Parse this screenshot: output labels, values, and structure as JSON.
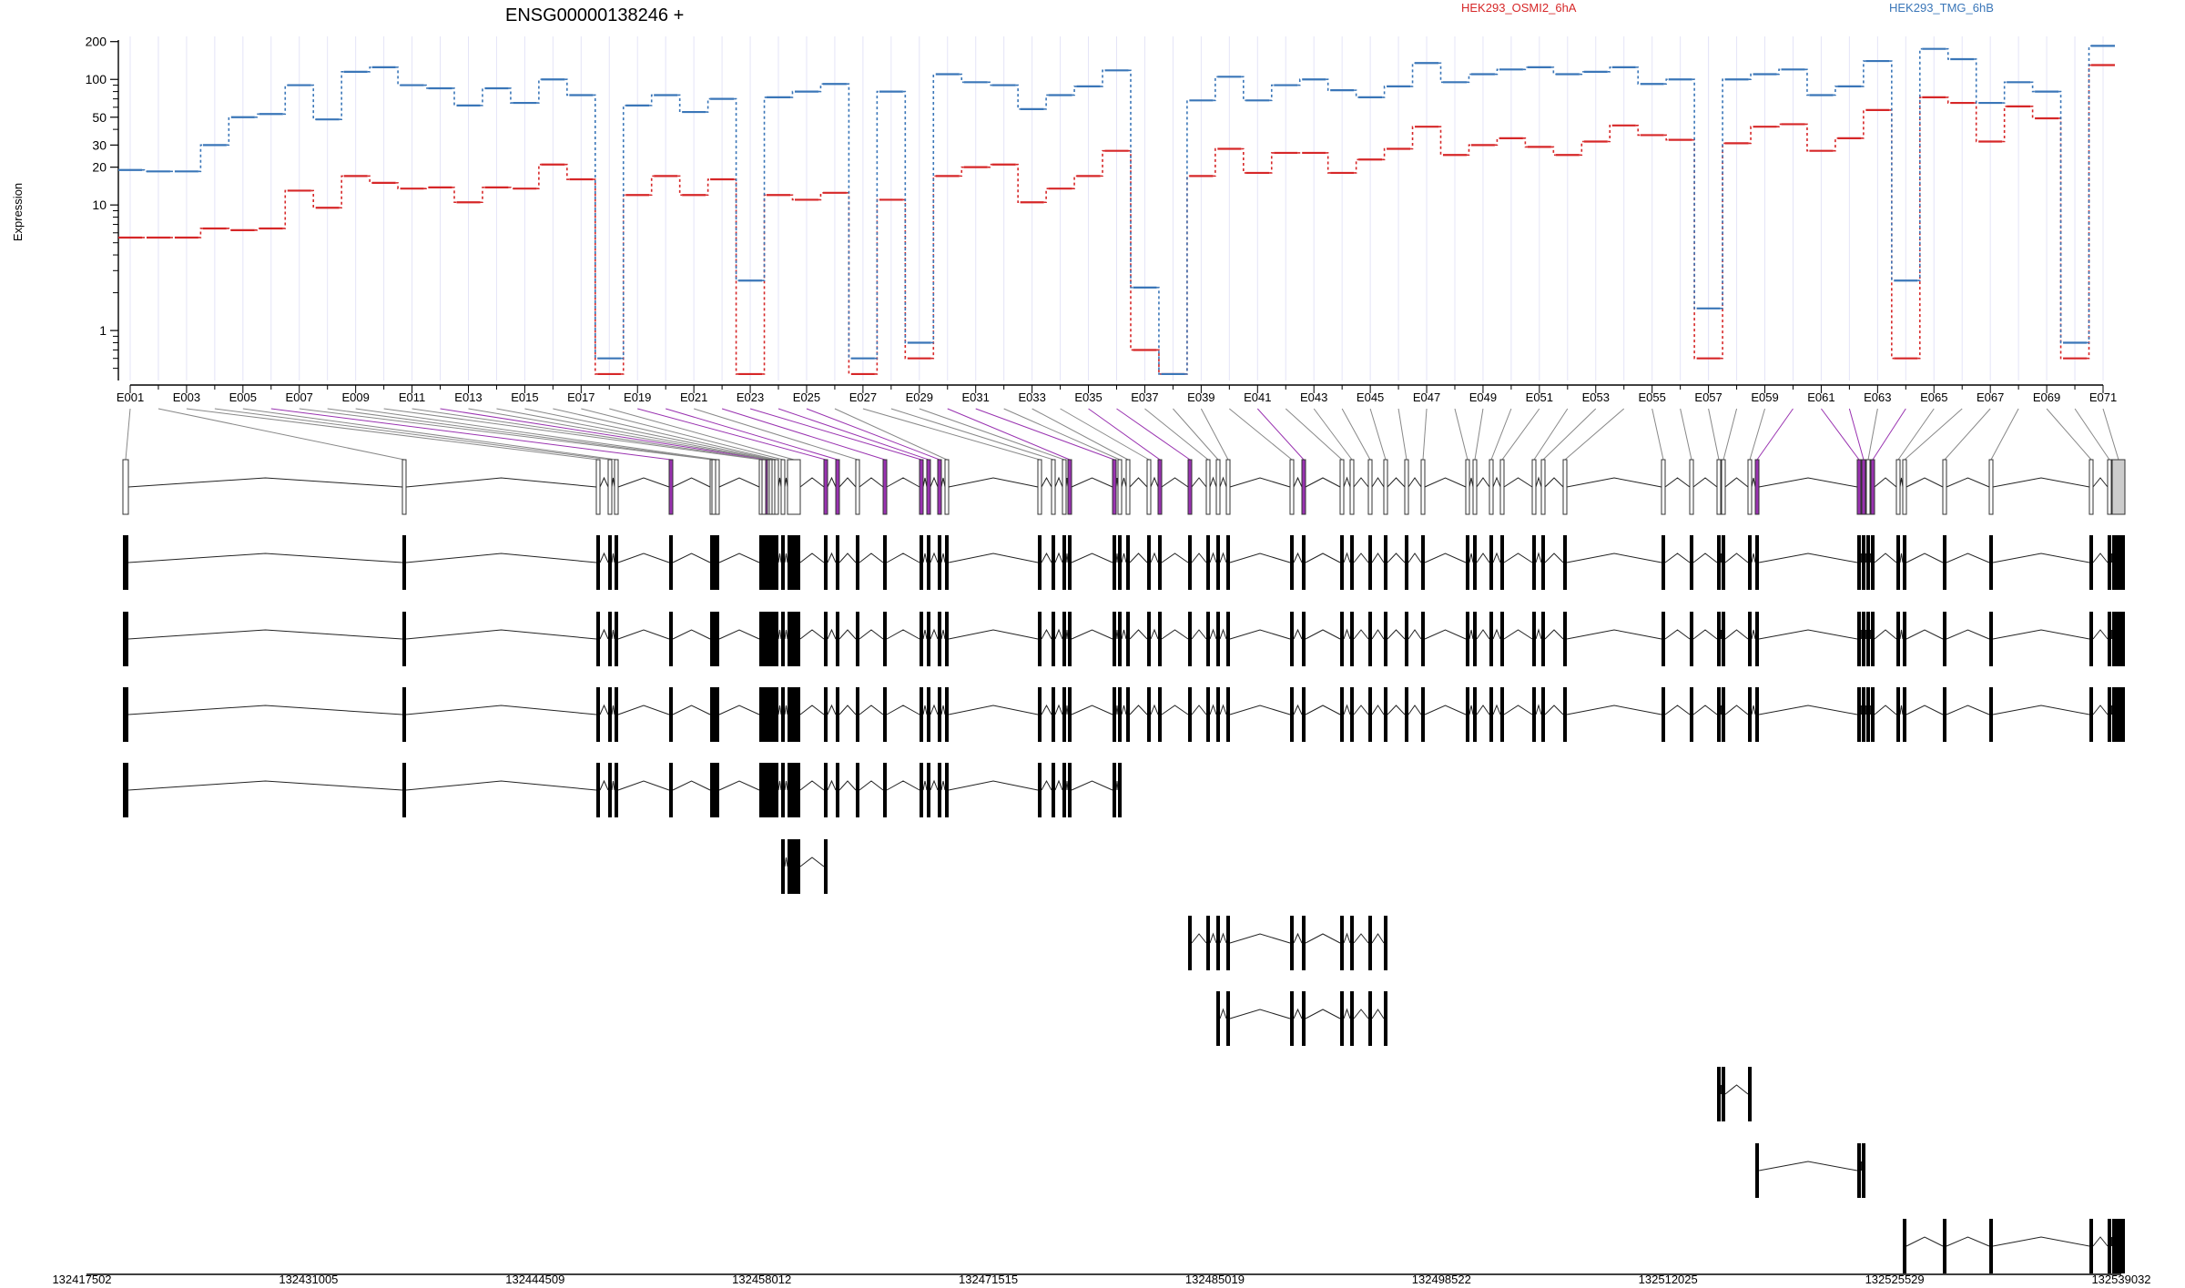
{
  "chart_data": {
    "type": "line",
    "title": "ENSG00000138246 +",
    "ylabel": "Expression",
    "yscale": "log",
    "ylim": [
      0.4,
      220
    ],
    "yticks": [
      1,
      10,
      20,
      30,
      50,
      100,
      200
    ],
    "exon_labels": [
      "E001",
      "E003",
      "E005",
      "E007",
      "E009",
      "E011",
      "E013",
      "E015",
      "E017",
      "E019",
      "E021",
      "E023",
      "E025",
      "E027",
      "E029",
      "E031",
      "E033",
      "E035",
      "E037",
      "E039",
      "E041",
      "E043",
      "E045",
      "E047",
      "E049",
      "E051",
      "E053",
      "E055",
      "E057",
      "E059",
      "E061",
      "E063",
      "E065",
      "E067",
      "E069",
      "E071"
    ],
    "series": [
      {
        "name": "HEK293_OSMI2_6hA",
        "color": "#d62728",
        "values": [
          5.5,
          5.5,
          5.5,
          6.5,
          6.3,
          6.5,
          13,
          9.5,
          17,
          15,
          13.5,
          13.8,
          10.5,
          13.8,
          13.5,
          21,
          16,
          0.45,
          12,
          17,
          12,
          16,
          0.45,
          12,
          11,
          12.5,
          0.45,
          11,
          0.6,
          17,
          20,
          21,
          10.5,
          13.5,
          17,
          27,
          0.7,
          0.45,
          17,
          28,
          18,
          26,
          26,
          18,
          23,
          28,
          42,
          25,
          30,
          34,
          29,
          25,
          32,
          43,
          36,
          33,
          0.6,
          31,
          42,
          44,
          27,
          34,
          57,
          0.6,
          72,
          65,
          32,
          61,
          49,
          0.6,
          130
        ]
      },
      {
        "name": "HEK293_TMG_6hB",
        "color": "#3a76b8",
        "values": [
          19,
          18.5,
          18.5,
          30,
          50,
          53,
          90,
          48,
          115,
          125,
          90,
          85,
          62,
          85,
          65,
          100,
          75,
          0.6,
          62,
          75,
          55,
          70,
          2.5,
          72,
          80,
          92,
          0.6,
          80,
          0.8,
          110,
          95,
          90,
          58,
          75,
          88,
          118,
          2.2,
          0.45,
          68,
          105,
          68,
          90,
          100,
          82,
          72,
          88,
          135,
          95,
          110,
          120,
          125,
          110,
          115,
          125,
          92,
          100,
          1.5,
          100,
          110,
          120,
          75,
          88,
          140,
          2.5,
          175,
          145,
          65,
          95,
          80,
          0.8,
          185
        ]
      }
    ],
    "genome_ticks": [
      "132417502",
      "132431005",
      "132444509",
      "132458012",
      "132471515",
      "132485019",
      "132498522",
      "132512025",
      "132525529",
      "132539032"
    ],
    "xlim": [
      132417502,
      132539032
    ],
    "purple_exons": [
      5,
      11,
      18,
      19,
      21,
      22,
      23,
      24,
      29,
      30,
      34,
      35,
      40,
      59,
      60,
      61,
      63
    ]
  },
  "legend": {
    "osmi": "HEK293_OSMI2_6hA",
    "tmg": "HEK293_TMG_6hB"
  }
}
